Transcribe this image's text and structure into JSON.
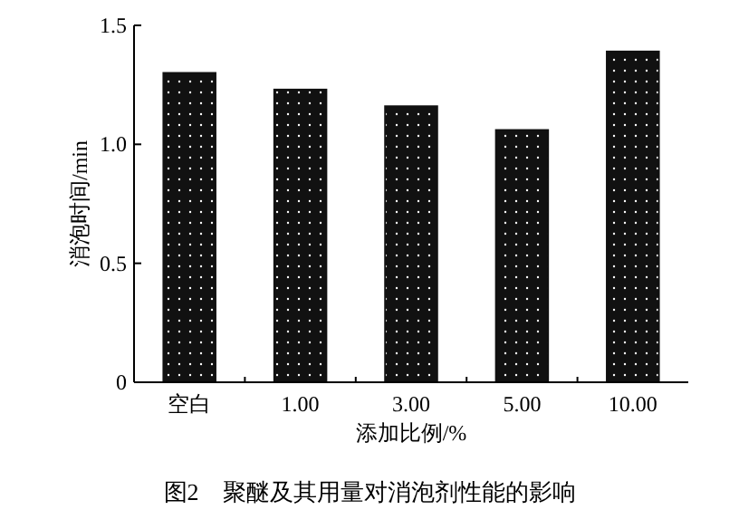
{
  "chart_data": {
    "type": "bar",
    "title": "图2　聚醚及其用量对消泡剂性能的影响",
    "xlabel": "添加比例/%",
    "ylabel": "消泡时间/min",
    "categories": [
      "空白",
      "1.00",
      "3.00",
      "5.00",
      "10.00"
    ],
    "values": [
      1.3,
      1.23,
      1.16,
      1.06,
      1.39
    ],
    "color": "#111111",
    "ylim": [
      0,
      1.5
    ],
    "yticks": [
      0,
      {
        "value": 0.5,
        "label": "0.5"
      },
      {
        "value": 1.0,
        "label": "1.0"
      },
      {
        "value": 1.5,
        "label": "1.5"
      }
    ],
    "grid": false
  }
}
